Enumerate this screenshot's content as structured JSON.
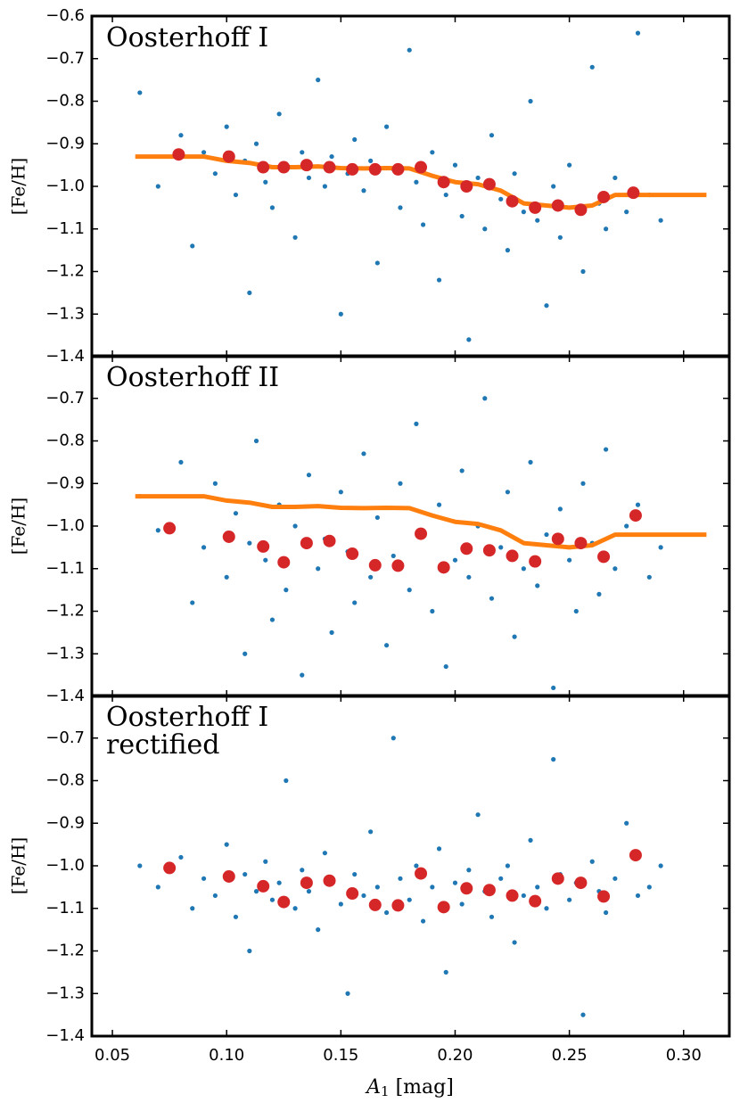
{
  "chart_data": [
    {
      "type": "scatter",
      "title": [
        "Oosterhoff I"
      ],
      "ylabel": "[Fe/H]",
      "xlim": [
        0.041,
        0.32
      ],
      "xticks": [
        0.05,
        {
          "value": 0.1,
          "label": "0.10"
        },
        0.15,
        {
          "value": 0.2,
          "label": "0.20"
        },
        0.25,
        {
          "value": 0.3,
          "label": "0.30"
        }
      ],
      "ylim": [
        -1.4,
        -0.6
      ],
      "yticks": [
        {
          "value": -0.6,
          "label": "−0.6"
        },
        {
          "value": -0.7,
          "label": "−0.7"
        },
        {
          "value": -0.8,
          "label": "−0.8"
        },
        {
          "value": -0.9,
          "label": "−0.9"
        },
        {
          "value": -1.0,
          "label": "−1.0"
        },
        {
          "value": -1.1,
          "label": "−1.1"
        },
        {
          "value": -1.2,
          "label": "−1.2"
        },
        {
          "value": -1.3,
          "label": "−1.3"
        },
        {
          "value": -1.4,
          "label": "−1.4"
        }
      ],
      "series": [
        {
          "style": "dots",
          "color": "#1f77b4",
          "x": [
            0.062,
            0.07,
            0.08,
            0.085,
            0.09,
            0.095,
            0.1,
            0.104,
            0.108,
            0.11,
            0.113,
            0.117,
            0.12,
            0.123,
            0.126,
            0.13,
            0.133,
            0.136,
            0.14,
            0.143,
            0.146,
            0.15,
            0.153,
            0.156,
            0.16,
            0.163,
            0.166,
            0.17,
            0.173,
            0.176,
            0.18,
            0.183,
            0.186,
            0.19,
            0.193,
            0.196,
            0.2,
            0.203,
            0.206,
            0.21,
            0.213,
            0.216,
            0.22,
            0.223,
            0.226,
            0.23,
            0.233,
            0.236,
            0.24,
            0.243,
            0.246,
            0.25,
            0.253,
            0.256,
            0.26,
            0.263,
            0.266,
            0.27,
            0.275,
            0.28,
            0.285,
            0.29
          ],
          "values": [
            -0.78,
            -1.0,
            -0.88,
            -1.14,
            -0.92,
            -0.97,
            -0.86,
            -1.02,
            -0.94,
            -1.25,
            -0.9,
            -0.99,
            -1.05,
            -0.83,
            -0.95,
            -1.12,
            -0.92,
            -0.98,
            -0.75,
            -1.0,
            -0.93,
            -1.3,
            -0.97,
            -0.89,
            -1.01,
            -0.94,
            -1.18,
            -0.86,
            -0.96,
            -1.05,
            -0.68,
            -0.99,
            -1.09,
            -0.92,
            -1.22,
            -1.02,
            -0.95,
            -1.07,
            -1.36,
            -0.98,
            -1.1,
            -0.88,
            -1.03,
            -1.15,
            -0.97,
            -1.06,
            -0.8,
            -1.08,
            -1.28,
            -1.0,
            -1.12,
            -0.95,
            -1.05,
            -1.2,
            -0.72,
            -1.04,
            -1.1,
            -0.98,
            -1.06,
            -0.64,
            -1.02,
            -1.08
          ]
        },
        {
          "style": "line",
          "color": "#ff7f0e",
          "x": [
            0.06,
            0.09,
            0.1,
            0.11,
            0.12,
            0.13,
            0.14,
            0.15,
            0.16,
            0.17,
            0.18,
            0.19,
            0.2,
            0.21,
            0.22,
            0.23,
            0.24,
            0.25,
            0.26,
            0.27,
            0.31
          ],
          "values": [
            -0.93,
            -0.93,
            -0.94,
            -0.945,
            -0.955,
            -0.955,
            -0.953,
            -0.957,
            -0.958,
            -0.957,
            -0.958,
            -0.975,
            -0.99,
            -0.995,
            -1.01,
            -1.04,
            -1.045,
            -1.05,
            -1.045,
            -1.02,
            -1.02
          ]
        },
        {
          "style": "circles",
          "color": "#d62728",
          "x": [
            0.079,
            0.101,
            0.116,
            0.125,
            0.135,
            0.145,
            0.155,
            0.165,
            0.175,
            0.185,
            0.195,
            0.205,
            0.215,
            0.225,
            0.235,
            0.245,
            0.255,
            0.265,
            0.278
          ],
          "values": [
            -0.925,
            -0.93,
            -0.955,
            -0.955,
            -0.95,
            -0.955,
            -0.96,
            -0.96,
            -0.96,
            -0.955,
            -0.99,
            -1.0,
            -0.995,
            -1.035,
            -1.05,
            -1.045,
            -1.055,
            -1.025,
            -1.015
          ]
        }
      ]
    },
    {
      "type": "scatter",
      "title": [
        "Oosterhoff II"
      ],
      "ylabel": "[Fe/H]",
      "xlim": [
        0.041,
        0.32
      ],
      "xticks": [
        0.05,
        {
          "value": 0.1,
          "label": "0.10"
        },
        0.15,
        {
          "value": 0.2,
          "label": "0.20"
        },
        0.25,
        {
          "value": 0.3,
          "label": "0.30"
        }
      ],
      "ylim": [
        -1.4,
        -0.6
      ],
      "yticks": [
        {
          "value": -0.7,
          "label": "−0.7"
        },
        {
          "value": -0.8,
          "label": "−0.8"
        },
        {
          "value": -0.9,
          "label": "−0.9"
        },
        {
          "value": -1.0,
          "label": "−1.0"
        },
        {
          "value": -1.1,
          "label": "−1.1"
        },
        {
          "value": -1.2,
          "label": "−1.2"
        },
        {
          "value": -1.3,
          "label": "−1.3"
        },
        {
          "value": -1.4,
          "label": "−1.4"
        }
      ],
      "series": [
        {
          "style": "dots",
          "color": "#1f77b4",
          "x": [
            0.062,
            0.07,
            0.08,
            0.085,
            0.09,
            0.095,
            0.1,
            0.104,
            0.108,
            0.11,
            0.113,
            0.117,
            0.12,
            0.123,
            0.126,
            0.13,
            0.133,
            0.136,
            0.14,
            0.143,
            0.146,
            0.15,
            0.153,
            0.156,
            0.16,
            0.163,
            0.166,
            0.17,
            0.173,
            0.176,
            0.18,
            0.183,
            0.186,
            0.19,
            0.193,
            0.196,
            0.2,
            0.203,
            0.206,
            0.21,
            0.213,
            0.216,
            0.22,
            0.223,
            0.226,
            0.23,
            0.233,
            0.236,
            0.24,
            0.243,
            0.246,
            0.25,
            0.253,
            0.256,
            0.26,
            0.263,
            0.266,
            0.27,
            0.275,
            0.28,
            0.285,
            0.29
          ],
          "values": [
            -0.93,
            -1.01,
            -0.85,
            -1.18,
            -1.05,
            -0.9,
            -1.12,
            -0.97,
            -1.3,
            -1.04,
            -0.8,
            -1.08,
            -1.22,
            -0.95,
            -1.15,
            -1.0,
            -1.35,
            -0.88,
            -1.1,
            -1.03,
            -1.25,
            -0.92,
            -1.06,
            -1.18,
            -0.83,
            -1.12,
            -0.98,
            -1.28,
            -1.07,
            -0.9,
            -1.15,
            -0.76,
            -1.02,
            -1.2,
            -0.95,
            -1.33,
            -1.08,
            -0.87,
            -1.12,
            -1.0,
            -0.7,
            -1.17,
            -1.05,
            -0.92,
            -1.26,
            -1.1,
            -0.85,
            -1.14,
            -1.02,
            -1.38,
            -0.96,
            -1.08,
            -1.2,
            -0.9,
            -1.04,
            -1.16,
            -0.82,
            -1.1,
            -1.0,
            -0.95,
            -1.12,
            -1.05
          ]
        },
        {
          "style": "line",
          "color": "#ff7f0e",
          "x": [
            0.06,
            0.09,
            0.1,
            0.11,
            0.12,
            0.13,
            0.14,
            0.15,
            0.16,
            0.17,
            0.18,
            0.19,
            0.2,
            0.21,
            0.22,
            0.23,
            0.24,
            0.25,
            0.26,
            0.27,
            0.31
          ],
          "values": [
            -0.93,
            -0.93,
            -0.94,
            -0.945,
            -0.955,
            -0.955,
            -0.953,
            -0.957,
            -0.958,
            -0.957,
            -0.958,
            -0.975,
            -0.99,
            -0.995,
            -1.01,
            -1.04,
            -1.045,
            -1.05,
            -1.045,
            -1.02,
            -1.02
          ]
        },
        {
          "style": "circles",
          "color": "#d62728",
          "x": [
            0.075,
            0.101,
            0.116,
            0.125,
            0.135,
            0.145,
            0.155,
            0.165,
            0.175,
            0.185,
            0.195,
            0.205,
            0.215,
            0.225,
            0.235,
            0.245,
            0.255,
            0.265,
            0.279
          ],
          "values": [
            -1.005,
            -1.025,
            -1.048,
            -1.085,
            -1.04,
            -1.035,
            -1.065,
            -1.092,
            -1.093,
            -1.018,
            -1.097,
            -1.053,
            -1.057,
            -1.07,
            -1.083,
            -1.03,
            -1.04,
            -1.072,
            -0.975
          ]
        }
      ]
    },
    {
      "type": "scatter",
      "title": [
        "Oosterhoff I",
        "rectified"
      ],
      "ylabel": "[Fe/H]",
      "xlabel": {
        "symbol": "A",
        "subscript": "1",
        "unit": " [mag]"
      },
      "xlim": [
        0.041,
        0.32
      ],
      "xticks": [
        0.05,
        {
          "value": 0.1,
          "label": "0.10"
        },
        0.15,
        {
          "value": 0.2,
          "label": "0.20"
        },
        0.25,
        {
          "value": 0.3,
          "label": "0.30"
        }
      ],
      "ylim": [
        -1.4,
        -0.6
      ],
      "yticks": [
        {
          "value": -0.7,
          "label": "−0.7"
        },
        {
          "value": -0.8,
          "label": "−0.8"
        },
        {
          "value": -0.9,
          "label": "−0.9"
        },
        {
          "value": -1.0,
          "label": "−1.0"
        },
        {
          "value": -1.1,
          "label": "−1.1"
        },
        {
          "value": -1.2,
          "label": "−1.2"
        },
        {
          "value": -1.3,
          "label": "−1.3"
        },
        {
          "value": -1.4,
          "label": "−1.4"
        }
      ],
      "series": [
        {
          "style": "dots",
          "color": "#1f77b4",
          "x": [
            0.062,
            0.07,
            0.08,
            0.085,
            0.09,
            0.095,
            0.1,
            0.104,
            0.108,
            0.11,
            0.113,
            0.117,
            0.12,
            0.123,
            0.126,
            0.13,
            0.133,
            0.136,
            0.14,
            0.143,
            0.146,
            0.15,
            0.153,
            0.156,
            0.16,
            0.163,
            0.166,
            0.17,
            0.173,
            0.176,
            0.18,
            0.183,
            0.186,
            0.19,
            0.193,
            0.196,
            0.2,
            0.203,
            0.206,
            0.21,
            0.213,
            0.216,
            0.22,
            0.223,
            0.226,
            0.23,
            0.233,
            0.236,
            0.24,
            0.243,
            0.246,
            0.25,
            0.253,
            0.256,
            0.26,
            0.263,
            0.266,
            0.27,
            0.275,
            0.28,
            0.285,
            0.29
          ],
          "values": [
            -1.0,
            -1.05,
            -0.98,
            -1.1,
            -1.03,
            -1.07,
            -0.95,
            -1.12,
            -1.02,
            -1.2,
            -1.06,
            -0.99,
            -1.08,
            -1.04,
            -0.8,
            -1.1,
            -1.01,
            -1.06,
            -1.15,
            -0.97,
            -1.04,
            -1.09,
            -1.3,
            -1.02,
            -1.07,
            -0.92,
            -1.05,
            -1.11,
            -0.7,
            -1.03,
            -1.08,
            -1.0,
            -1.13,
            -1.05,
            -0.96,
            -1.25,
            -1.04,
            -1.09,
            -1.01,
            -0.88,
            -1.06,
            -1.12,
            -1.03,
            -1.0,
            -1.18,
            -1.07,
            -0.94,
            -1.05,
            -1.1,
            -0.75,
            -1.02,
            -1.08,
            -1.04,
            -1.35,
            -0.99,
            -1.06,
            -1.11,
            -1.03,
            -0.9,
            -1.07,
            -1.05,
            -1.0
          ]
        },
        {
          "style": "circles",
          "color": "#d62728",
          "x": [
            0.075,
            0.101,
            0.116,
            0.125,
            0.135,
            0.145,
            0.155,
            0.165,
            0.175,
            0.185,
            0.195,
            0.205,
            0.215,
            0.225,
            0.235,
            0.245,
            0.255,
            0.265,
            0.279
          ],
          "values": [
            -1.005,
            -1.025,
            -1.048,
            -1.085,
            -1.04,
            -1.035,
            -1.065,
            -1.092,
            -1.093,
            -1.018,
            -1.097,
            -1.053,
            -1.057,
            -1.07,
            -1.083,
            -1.03,
            -1.04,
            -1.072,
            -0.975
          ]
        }
      ]
    }
  ]
}
